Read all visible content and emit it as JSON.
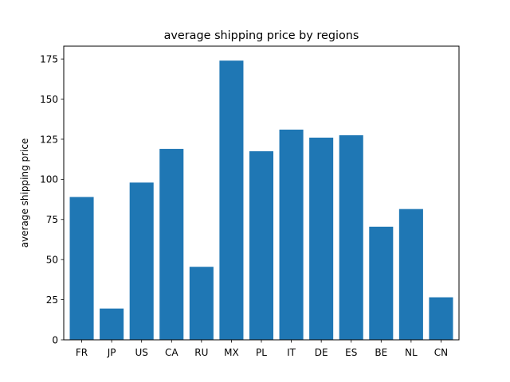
{
  "chart_data": {
    "type": "bar",
    "title": "average shipping price by regions",
    "xlabel": "",
    "ylabel": "average shipping price",
    "categories": [
      "FR",
      "JP",
      "US",
      "CA",
      "RU",
      "MX",
      "PL",
      "IT",
      "DE",
      "ES",
      "BE",
      "NL",
      "CN"
    ],
    "values": [
      89,
      19.5,
      98,
      119,
      45.5,
      174,
      117.5,
      131,
      126,
      127.5,
      70.5,
      81.5,
      26.5
    ],
    "ylim": [
      0,
      183
    ],
    "yticks": [
      0,
      25,
      50,
      75,
      100,
      125,
      150,
      175
    ],
    "bar_color": "#1f77b4",
    "grid": false,
    "legend": null
  }
}
